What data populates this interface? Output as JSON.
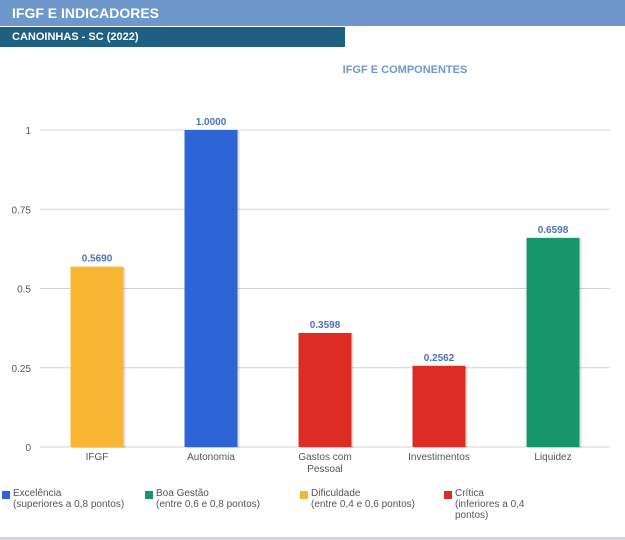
{
  "header": {
    "title": "IFGF E INDICADORES",
    "subtitle": "CANOINHAS - SC (2022)"
  },
  "colors": {
    "header_bg": "#6e97cc",
    "subheader_bg": "#1f5f82",
    "excelencia": "#2f64d6",
    "boa_gestao": "#17966c",
    "dificuldade": "#f7b732",
    "critica": "#dd2c22",
    "value_label": "#4a72b8",
    "gridline": "#d4d4d4"
  },
  "chart_data": {
    "type": "bar",
    "title": "IFGF E COMPONENTES",
    "xlabel": "",
    "ylabel": "",
    "ylim": [
      0,
      1
    ],
    "yticks": [
      {
        "value": 0,
        "label": "0"
      },
      {
        "value": 0.25,
        "label": "0.25"
      },
      {
        "value": 0.5,
        "label": "0.5"
      },
      {
        "value": 0.75,
        "label": "0.75"
      },
      {
        "value": 1,
        "label": "1"
      }
    ],
    "grid": true,
    "categories": [
      {
        "label": [
          "IFGF"
        ],
        "value": 0.569,
        "value_label": "0.5690",
        "color": "#f7b732"
      },
      {
        "label": [
          "Autonomia"
        ],
        "value": 1.0,
        "value_label": "1.0000",
        "color": "#2f64d6"
      },
      {
        "label": [
          "Gastos com",
          "Pessoal"
        ],
        "value": 0.3598,
        "value_label": "0.3598",
        "color": "#dd2c22"
      },
      {
        "label": [
          "Investimentos"
        ],
        "value": 0.2562,
        "value_label": "0.2562",
        "color": "#dd2c22"
      },
      {
        "label": [
          "Liquidez"
        ],
        "value": 0.6598,
        "value_label": "0.6598",
        "color": "#17966c"
      }
    ],
    "legend_position": "bottom"
  },
  "legend": [
    {
      "name": "Excelência",
      "desc": [
        "(superiores a 0,8 pontos)"
      ],
      "color": "#2f64d6"
    },
    {
      "name": "Boa Gestão",
      "desc": [
        "(entre 0,6 e 0,8 pontos)"
      ],
      "color": "#17966c"
    },
    {
      "name": "Dificuldade",
      "desc": [
        "(entre 0,4 e 0,6 pontos)"
      ],
      "color": "#f7b732"
    },
    {
      "name": "Crítica",
      "desc": [
        "(inferiores a 0,4",
        "pontos)"
      ],
      "color": "#dd2c22"
    }
  ]
}
